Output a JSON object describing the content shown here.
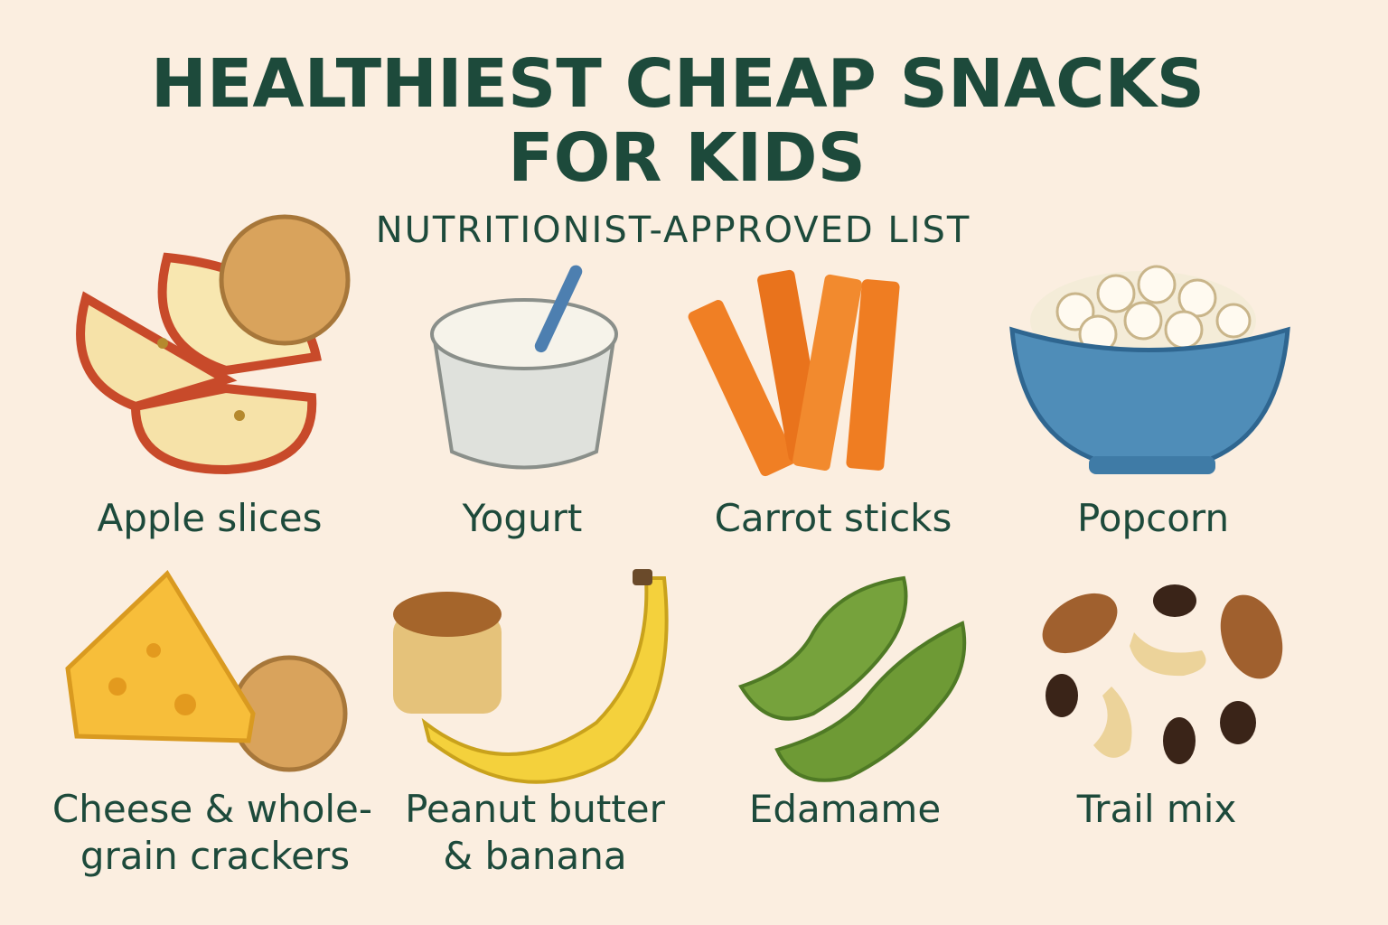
{
  "header": {
    "title": [
      "HEALTHIEST CHEAP SNACKS",
      "FOR KIDS"
    ],
    "subtitle": "NUTRITIONIST-APPROVED LIST"
  },
  "items": [
    {
      "label": [
        "Apple slices"
      ]
    },
    {
      "label": [
        "Yogurt"
      ]
    },
    {
      "label": [
        "Carrot sticks"
      ]
    },
    {
      "label": [
        "Popcorn"
      ]
    },
    {
      "label": [
        "Cheese & whole-",
        "grain crackers"
      ]
    },
    {
      "label": [
        "Peanut butter",
        "& banana"
      ]
    },
    {
      "label": [
        "Edamame"
      ]
    },
    {
      "label": [
        "Trail mix"
      ]
    }
  ]
}
